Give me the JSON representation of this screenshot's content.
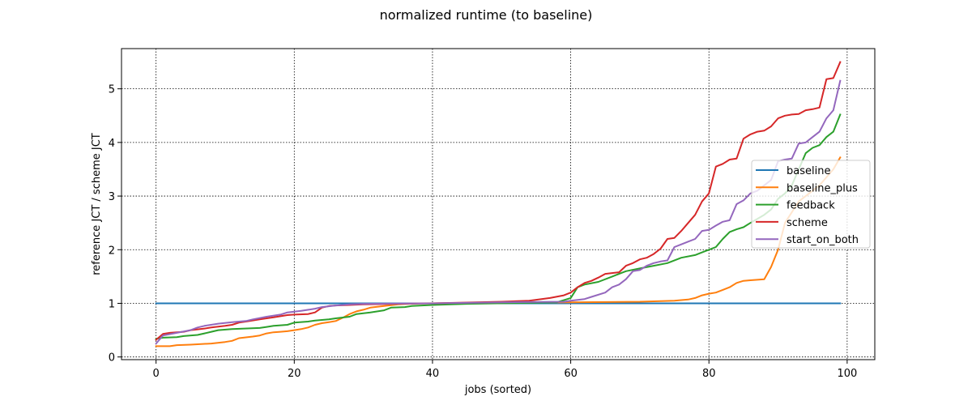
{
  "chart_data": {
    "type": "line",
    "title": "normalized runtime (to baseline)",
    "xlabel": "jobs (sorted)",
    "ylabel": "reference JCT / scheme JCT",
    "xlim": [
      -5,
      104
    ],
    "ylim": [
      -0.05,
      5.75
    ],
    "x_ticks": [
      0,
      20,
      40,
      60,
      80,
      100
    ],
    "y_ticks": [
      0,
      1,
      2,
      3,
      4,
      5
    ],
    "grid": true,
    "legend_position": "center-right",
    "series": [
      {
        "name": "baseline",
        "color": "#1f77b4",
        "points": [
          [
            0,
            1.0
          ],
          [
            99,
            1.0
          ]
        ]
      },
      {
        "name": "baseline_plus",
        "color": "#ff7f0e",
        "points": [
          [
            0,
            0.2
          ],
          [
            2,
            0.2
          ],
          [
            3,
            0.22
          ],
          [
            5,
            0.23
          ],
          [
            8,
            0.25
          ],
          [
            10,
            0.28
          ],
          [
            11,
            0.3
          ],
          [
            12,
            0.35
          ],
          [
            14,
            0.38
          ],
          [
            15,
            0.4
          ],
          [
            16,
            0.44
          ],
          [
            17,
            0.46
          ],
          [
            18,
            0.47
          ],
          [
            19,
            0.48
          ],
          [
            20,
            0.5
          ],
          [
            21,
            0.52
          ],
          [
            22,
            0.55
          ],
          [
            23,
            0.6
          ],
          [
            24,
            0.63
          ],
          [
            25,
            0.65
          ],
          [
            26,
            0.67
          ],
          [
            27,
            0.73
          ],
          [
            28,
            0.8
          ],
          [
            29,
            0.85
          ],
          [
            30,
            0.88
          ],
          [
            31,
            0.92
          ],
          [
            33,
            0.95
          ],
          [
            35,
            0.98
          ],
          [
            38,
            1.0
          ],
          [
            60,
            1.02
          ],
          [
            70,
            1.03
          ],
          [
            75,
            1.05
          ],
          [
            77,
            1.07
          ],
          [
            78,
            1.1
          ],
          [
            79,
            1.15
          ],
          [
            80,
            1.18
          ],
          [
            81,
            1.2
          ],
          [
            82,
            1.25
          ],
          [
            83,
            1.3
          ],
          [
            84,
            1.38
          ],
          [
            85,
            1.42
          ],
          [
            86,
            1.43
          ],
          [
            88,
            1.45
          ],
          [
            89,
            1.68
          ],
          [
            90,
            2.0
          ],
          [
            91,
            2.5
          ],
          [
            93,
            2.9
          ],
          [
            95,
            3.1
          ],
          [
            96,
            3.2
          ],
          [
            97,
            3.35
          ],
          [
            98,
            3.5
          ],
          [
            99,
            3.72
          ]
        ]
      },
      {
        "name": "feedback",
        "color": "#2ca02c",
        "points": [
          [
            0,
            0.34
          ],
          [
            1,
            0.36
          ],
          [
            3,
            0.37
          ],
          [
            4,
            0.39
          ],
          [
            6,
            0.41
          ],
          [
            7,
            0.44
          ],
          [
            8,
            0.47
          ],
          [
            9,
            0.5
          ],
          [
            11,
            0.52
          ],
          [
            15,
            0.54
          ],
          [
            16,
            0.56
          ],
          [
            17,
            0.58
          ],
          [
            19,
            0.6
          ],
          [
            20,
            0.64
          ],
          [
            22,
            0.66
          ],
          [
            23,
            0.68
          ],
          [
            25,
            0.7
          ],
          [
            26,
            0.72
          ],
          [
            28,
            0.75
          ],
          [
            29,
            0.8
          ],
          [
            31,
            0.83
          ],
          [
            33,
            0.87
          ],
          [
            34,
            0.92
          ],
          [
            36,
            0.93
          ],
          [
            37,
            0.95
          ],
          [
            40,
            0.97
          ],
          [
            45,
            0.99
          ],
          [
            58,
            1.02
          ],
          [
            60,
            1.1
          ],
          [
            61,
            1.3
          ],
          [
            62,
            1.35
          ],
          [
            64,
            1.4
          ],
          [
            66,
            1.5
          ],
          [
            67,
            1.55
          ],
          [
            68,
            1.6
          ],
          [
            70,
            1.65
          ],
          [
            72,
            1.7
          ],
          [
            74,
            1.75
          ],
          [
            76,
            1.85
          ],
          [
            78,
            1.9
          ],
          [
            79,
            1.95
          ],
          [
            80,
            2.0
          ],
          [
            81,
            2.05
          ],
          [
            82,
            2.2
          ],
          [
            83,
            2.33
          ],
          [
            84,
            2.38
          ],
          [
            85,
            2.42
          ],
          [
            86,
            2.5
          ],
          [
            88,
            2.65
          ],
          [
            89,
            2.75
          ],
          [
            90,
            2.95
          ],
          [
            91,
            3.05
          ],
          [
            92,
            3.2
          ],
          [
            93,
            3.5
          ],
          [
            94,
            3.8
          ],
          [
            95,
            3.9
          ],
          [
            96,
            3.95
          ],
          [
            97,
            4.1
          ],
          [
            98,
            4.2
          ],
          [
            99,
            4.52
          ]
        ]
      },
      {
        "name": "scheme",
        "color": "#d62728",
        "points": [
          [
            0,
            0.32
          ],
          [
            1,
            0.43
          ],
          [
            2,
            0.45
          ],
          [
            4,
            0.47
          ],
          [
            5,
            0.5
          ],
          [
            7,
            0.53
          ],
          [
            8,
            0.55
          ],
          [
            10,
            0.58
          ],
          [
            11,
            0.6
          ],
          [
            12,
            0.64
          ],
          [
            13,
            0.66
          ],
          [
            15,
            0.7
          ],
          [
            17,
            0.74
          ],
          [
            18,
            0.76
          ],
          [
            19,
            0.78
          ],
          [
            20,
            0.79
          ],
          [
            22,
            0.8
          ],
          [
            23,
            0.83
          ],
          [
            24,
            0.92
          ],
          [
            25,
            0.95
          ],
          [
            26,
            0.96
          ],
          [
            28,
            0.97
          ],
          [
            30,
            0.98
          ],
          [
            35,
            0.99
          ],
          [
            40,
            1.0
          ],
          [
            50,
            1.03
          ],
          [
            54,
            1.05
          ],
          [
            57,
            1.1
          ],
          [
            59,
            1.15
          ],
          [
            60,
            1.2
          ],
          [
            61,
            1.3
          ],
          [
            62,
            1.38
          ],
          [
            63,
            1.42
          ],
          [
            64,
            1.48
          ],
          [
            65,
            1.55
          ],
          [
            67,
            1.58
          ],
          [
            68,
            1.7
          ],
          [
            69,
            1.75
          ],
          [
            70,
            1.82
          ],
          [
            71,
            1.85
          ],
          [
            72,
            1.92
          ],
          [
            73,
            2.02
          ],
          [
            74,
            2.2
          ],
          [
            75,
            2.22
          ],
          [
            76,
            2.35
          ],
          [
            77,
            2.5
          ],
          [
            78,
            2.65
          ],
          [
            79,
            2.9
          ],
          [
            80,
            3.05
          ],
          [
            81,
            3.55
          ],
          [
            82,
            3.6
          ],
          [
            83,
            3.68
          ],
          [
            84,
            3.7
          ],
          [
            85,
            4.07
          ],
          [
            86,
            4.15
          ],
          [
            87,
            4.2
          ],
          [
            88,
            4.22
          ],
          [
            89,
            4.3
          ],
          [
            90,
            4.45
          ],
          [
            91,
            4.5
          ],
          [
            92,
            4.52
          ],
          [
            93,
            4.53
          ],
          [
            94,
            4.6
          ],
          [
            95,
            4.62
          ],
          [
            96,
            4.65
          ],
          [
            97,
            5.18
          ],
          [
            98,
            5.2
          ],
          [
            99,
            5.5
          ]
        ]
      },
      {
        "name": "start_on_both",
        "color": "#9467bd",
        "points": [
          [
            0,
            0.25
          ],
          [
            1,
            0.4
          ],
          [
            3,
            0.45
          ],
          [
            5,
            0.5
          ],
          [
            6,
            0.55
          ],
          [
            7,
            0.58
          ],
          [
            9,
            0.62
          ],
          [
            11,
            0.65
          ],
          [
            13,
            0.67
          ],
          [
            14,
            0.7
          ],
          [
            16,
            0.75
          ],
          [
            18,
            0.79
          ],
          [
            19,
            0.83
          ],
          [
            21,
            0.86
          ],
          [
            23,
            0.9
          ],
          [
            24,
            0.93
          ],
          [
            26,
            0.96
          ],
          [
            28,
            0.98
          ],
          [
            30,
            0.99
          ],
          [
            40,
            1.0
          ],
          [
            50,
            1.02
          ],
          [
            59,
            1.03
          ],
          [
            60,
            1.05
          ],
          [
            62,
            1.08
          ],
          [
            63,
            1.12
          ],
          [
            65,
            1.2
          ],
          [
            66,
            1.3
          ],
          [
            67,
            1.35
          ],
          [
            68,
            1.45
          ],
          [
            69,
            1.6
          ],
          [
            70,
            1.62
          ],
          [
            71,
            1.7
          ],
          [
            72,
            1.75
          ],
          [
            73,
            1.78
          ],
          [
            74,
            1.8
          ],
          [
            75,
            2.05
          ],
          [
            76,
            2.1
          ],
          [
            77,
            2.15
          ],
          [
            78,
            2.2
          ],
          [
            79,
            2.35
          ],
          [
            80,
            2.37
          ],
          [
            81,
            2.45
          ],
          [
            82,
            2.52
          ],
          [
            83,
            2.55
          ],
          [
            84,
            2.85
          ],
          [
            85,
            2.92
          ],
          [
            86,
            3.05
          ],
          [
            87,
            3.1
          ],
          [
            88,
            3.2
          ],
          [
            89,
            3.3
          ],
          [
            90,
            3.65
          ],
          [
            91,
            3.68
          ],
          [
            92,
            3.7
          ],
          [
            93,
            3.98
          ],
          [
            94,
            4.0
          ],
          [
            95,
            4.1
          ],
          [
            96,
            4.2
          ],
          [
            97,
            4.45
          ],
          [
            98,
            4.6
          ],
          [
            99,
            5.15
          ]
        ]
      }
    ]
  }
}
